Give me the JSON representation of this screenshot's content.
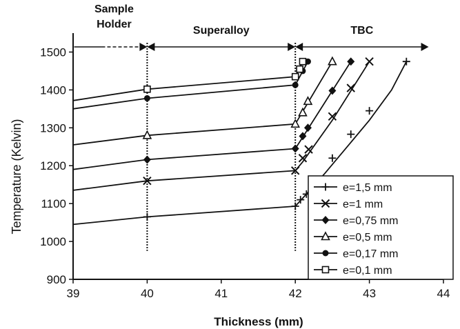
{
  "chart_data": {
    "type": "line",
    "title": "",
    "xlabel": "Thickness (mm)",
    "ylabel": "Temperature (Kelvin)",
    "xlim": [
      39,
      44
    ],
    "ylim": [
      900,
      1550
    ],
    "xticks": [
      "39",
      "40",
      "41",
      "42",
      "43",
      "44"
    ],
    "yticks": [
      "900",
      "1000",
      "1100",
      "1200",
      "1300",
      "1400",
      "1500"
    ],
    "grid": false,
    "legend_position": "bottom-right",
    "boundaries": [
      40,
      42
    ],
    "regions": [
      {
        "label_lines": [
          "Sample",
          "Holder"
        ],
        "from": 39.2,
        "to": 40,
        "dashed_start": true
      },
      {
        "label_lines": [
          "Superalloy"
        ],
        "from": 40,
        "to": 42
      },
      {
        "label_lines": [
          "TBC"
        ],
        "from": 42,
        "to": 43.8
      }
    ],
    "series": [
      {
        "name": "e=1,5 mm",
        "marker": "plus",
        "line": [
          [
            39,
            1045
          ],
          [
            40,
            1065
          ],
          [
            42,
            1093
          ],
          [
            42.15,
            1125
          ],
          [
            42.4,
            1180
          ],
          [
            42.7,
            1250
          ],
          [
            43.0,
            1320
          ],
          [
            43.3,
            1400
          ],
          [
            43.5,
            1475
          ]
        ],
        "markers": [
          [
            40,
            1065
          ],
          [
            42,
            1093
          ],
          [
            42.07,
            1110
          ],
          [
            42.15,
            1125
          ],
          [
            42.25,
            1140
          ],
          [
            42.5,
            1220
          ],
          [
            42.75,
            1283
          ],
          [
            43.0,
            1345
          ],
          [
            43.5,
            1475
          ]
        ]
      },
      {
        "name": "e=1 mm",
        "marker": "x",
        "line": [
          [
            39,
            1135
          ],
          [
            40,
            1160
          ],
          [
            42,
            1187
          ],
          [
            42.1,
            1210
          ],
          [
            42.5,
            1320
          ],
          [
            43.0,
            1475
          ]
        ],
        "markers": [
          [
            40,
            1160
          ],
          [
            42,
            1187
          ],
          [
            42.1,
            1220
          ],
          [
            42.18,
            1243
          ],
          [
            42.5,
            1330
          ],
          [
            42.75,
            1405
          ],
          [
            43.0,
            1475
          ]
        ]
      },
      {
        "name": "e=0,75 mm",
        "marker": "diamond",
        "line": [
          [
            39,
            1190
          ],
          [
            40,
            1216
          ],
          [
            42,
            1245
          ],
          [
            42.1,
            1275
          ],
          [
            42.75,
            1475
          ]
        ],
        "markers": [
          [
            40,
            1216
          ],
          [
            42,
            1245
          ],
          [
            42.1,
            1278
          ],
          [
            42.17,
            1300
          ],
          [
            42.5,
            1398
          ],
          [
            42.75,
            1475
          ]
        ]
      },
      {
        "name": "e=0,5 mm",
        "marker": "triangle",
        "line": [
          [
            39,
            1255
          ],
          [
            40,
            1280
          ],
          [
            42,
            1310
          ],
          [
            42.5,
            1475
          ]
        ],
        "markers": [
          [
            40,
            1280
          ],
          [
            42,
            1310
          ],
          [
            42.1,
            1340
          ],
          [
            42.17,
            1370
          ],
          [
            42.5,
            1475
          ]
        ]
      },
      {
        "name": "e=0,17 mm",
        "marker": "circle",
        "line": [
          [
            39,
            1350
          ],
          [
            40,
            1378
          ],
          [
            42,
            1413
          ],
          [
            42.17,
            1475
          ]
        ],
        "markers": [
          [
            40,
            1378
          ],
          [
            42,
            1413
          ],
          [
            42.1,
            1450
          ],
          [
            42.17,
            1475
          ]
        ]
      },
      {
        "name": "e=0,1 mm",
        "marker": "square",
        "line": [
          [
            39,
            1372
          ],
          [
            40,
            1402
          ],
          [
            42,
            1435
          ],
          [
            42.1,
            1475
          ]
        ],
        "markers": [
          [
            40,
            1402
          ],
          [
            42,
            1435
          ],
          [
            42.06,
            1455
          ],
          [
            42.1,
            1475
          ]
        ]
      }
    ]
  }
}
